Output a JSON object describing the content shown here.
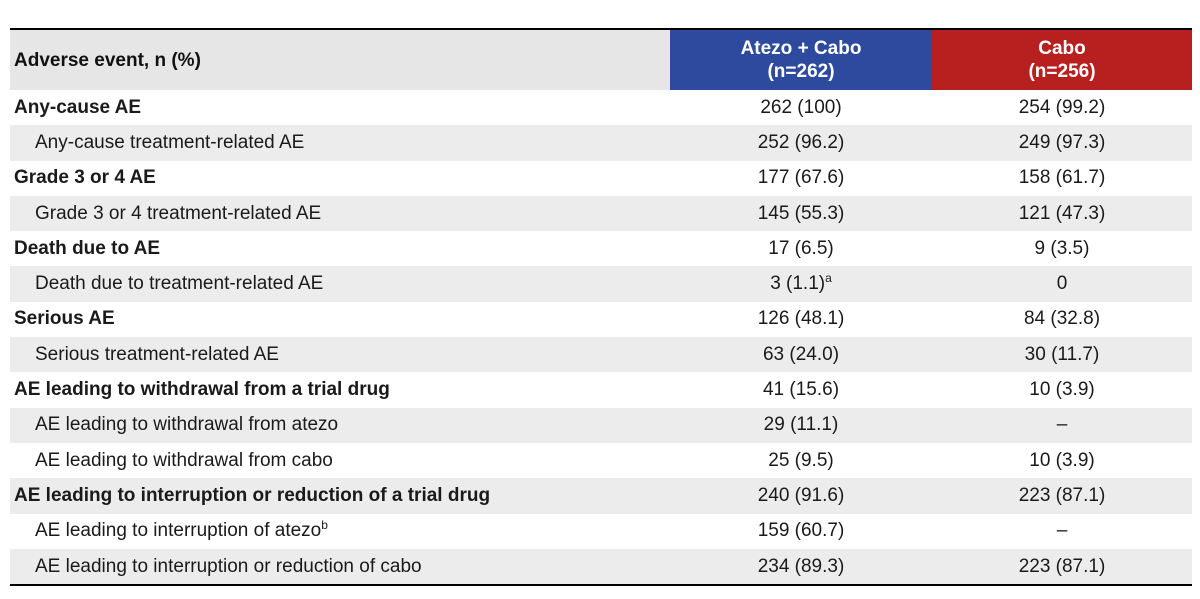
{
  "header": {
    "label": "Adverse event, n (%)",
    "arm_a_name": "Atezo + Cabo",
    "arm_a_n": "(n=262)",
    "arm_b_name": "Cabo",
    "arm_b_n": "(n=256)"
  },
  "rows": [
    {
      "label": "Any-cause AE",
      "sup": "",
      "a": "262 (100)",
      "a_sup": "",
      "b": "254 (99.2)"
    },
    {
      "label": "Any-cause treatment-related AE",
      "sup": "",
      "a": "252 (96.2)",
      "a_sup": "",
      "b": "249 (97.3)"
    },
    {
      "label": "Grade 3 or 4 AE",
      "sup": "",
      "a": "177 (67.6)",
      "a_sup": "",
      "b": "158 (61.7)"
    },
    {
      "label": "Grade 3 or 4 treatment-related AE",
      "sup": "",
      "a": "145 (55.3)",
      "a_sup": "",
      "b": "121 (47.3)"
    },
    {
      "label": "Death due to AE",
      "sup": "",
      "a": "17 (6.5)",
      "a_sup": "",
      "b": "9 (3.5)"
    },
    {
      "label": "Death due to treatment-related AE",
      "sup": "",
      "a": "3 (1.1)",
      "a_sup": "a",
      "b": "0"
    },
    {
      "label": "Serious AE",
      "sup": "",
      "a": "126 (48.1)",
      "a_sup": "",
      "b": "84 (32.8)"
    },
    {
      "label": "Serious treatment-related AE",
      "sup": "",
      "a": "63 (24.0)",
      "a_sup": "",
      "b": "30 (11.7)"
    },
    {
      "label": "AE leading to withdrawal from a trial drug",
      "sup": "",
      "a": "41 (15.6)",
      "a_sup": "",
      "b": "10 (3.9)"
    },
    {
      "label": "AE leading to withdrawal from atezo",
      "sup": "",
      "a": "29 (11.1)",
      "a_sup": "",
      "b": "–"
    },
    {
      "label": "AE leading to withdrawal from cabo",
      "sup": "",
      "a": "25 (9.5)",
      "a_sup": "",
      "b": "10 (3.9)"
    },
    {
      "label": "AE leading to interruption or reduction of a trial drug",
      "sup": "",
      "a": "240 (91.6)",
      "a_sup": "",
      "b": "223 (87.1)"
    },
    {
      "label": "AE leading to interruption of atezo",
      "sup": "b",
      "a": "159 (60.7)",
      "a_sup": "",
      "b": "–"
    },
    {
      "label": "AE leading to interruption or reduction of cabo",
      "sup": "",
      "a": "234 (89.3)",
      "a_sup": "",
      "b": "223 (87.1)"
    }
  ]
}
